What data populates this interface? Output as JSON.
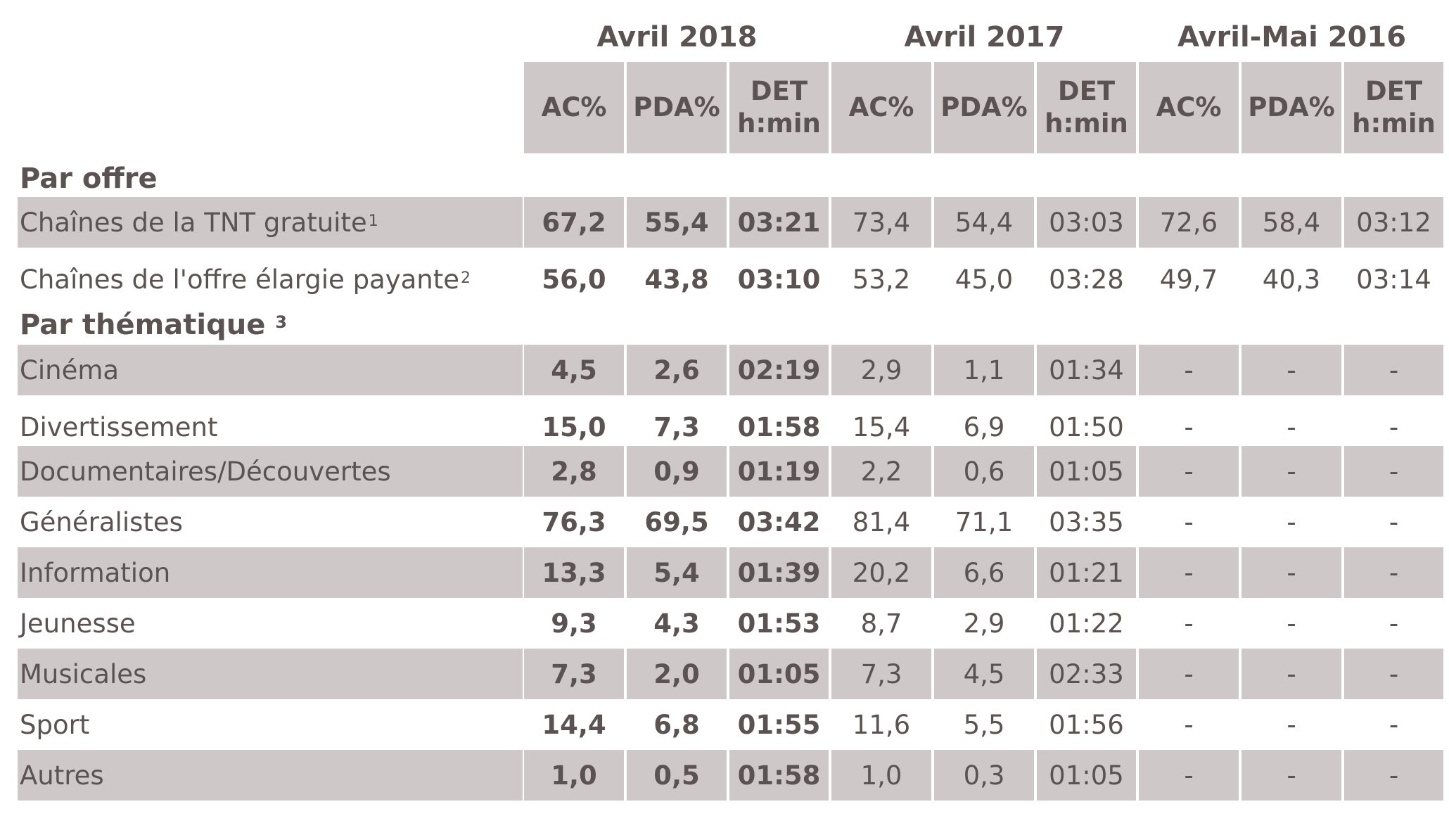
{
  "periods": [
    "Avril 2018",
    "Avril 2017",
    "Avril-Mai 2016"
  ],
  "column_headers": [
    "AC%",
    "PDA%",
    "DET\nh:min",
    "AC%",
    "PDA%",
    "DET\nh:min",
    "AC%",
    "PDA%",
    "DET\nh:min"
  ],
  "sections": [
    {
      "title": "Par offre",
      "note": "",
      "rows": [
        {
          "label": "Chaînes de la TNT gratuite",
          "sup": "1",
          "values": [
            "67,2",
            "55,4",
            "03:21",
            "73,4",
            "54,4",
            "03:03",
            "72,6",
            "58,4",
            "03:12"
          ]
        },
        {
          "label": "Chaînes de l'offre élargie payante",
          "sup": "2",
          "values": [
            "56,0",
            "43,8",
            "03:10",
            "53,2",
            "45,0",
            "03:28",
            "49,7",
            "40,3",
            "03:14"
          ]
        }
      ]
    },
    {
      "title": "Par thématique",
      "note": "3",
      "rows": [
        {
          "label": "Cinéma",
          "sup": "",
          "values": [
            "4,5",
            "2,6",
            "02:19",
            "2,9",
            "1,1",
            "01:34",
            "-",
            "-",
            "-"
          ]
        },
        {
          "label": "Divertissement",
          "sup": "",
          "values": [
            "15,0",
            "7,3",
            "01:58",
            "15,4",
            "6,9",
            "01:50",
            "-",
            "-",
            "-"
          ]
        },
        {
          "label": "Documentaires/Découvertes",
          "sup": "",
          "values": [
            "2,8",
            "0,9",
            "01:19",
            "2,2",
            "0,6",
            "01:05",
            "-",
            "-",
            "-"
          ]
        },
        {
          "label": "Généralistes",
          "sup": "",
          "values": [
            "76,3",
            "69,5",
            "03:42",
            "81,4",
            "71,1",
            "03:35",
            "-",
            "-",
            "-"
          ]
        },
        {
          "label": "Information",
          "sup": "",
          "values": [
            "13,3",
            "5,4",
            "01:39",
            "20,2",
            "6,6",
            "01:21",
            "-",
            "-",
            "-"
          ]
        },
        {
          "label": "Jeunesse",
          "sup": "",
          "values": [
            "9,3",
            "4,3",
            "01:53",
            "8,7",
            "2,9",
            "01:22",
            "-",
            "-",
            "-"
          ]
        },
        {
          "label": "Musicales",
          "sup": "",
          "values": [
            "7,3",
            "2,0",
            "01:05",
            "7,3",
            "4,5",
            "02:33",
            "-",
            "-",
            "-"
          ]
        },
        {
          "label": "Sport",
          "sup": "",
          "values": [
            "14,4",
            "6,8",
            "01:55",
            "11,6",
            "5,5",
            "01:56",
            "-",
            "-",
            "-"
          ]
        },
        {
          "label": "Autres",
          "sup": "",
          "values": [
            "1,0",
            "0,5",
            "01:58",
            "1,0",
            "0,3",
            "01:05",
            "-",
            "-",
            "-"
          ]
        }
      ]
    }
  ]
}
